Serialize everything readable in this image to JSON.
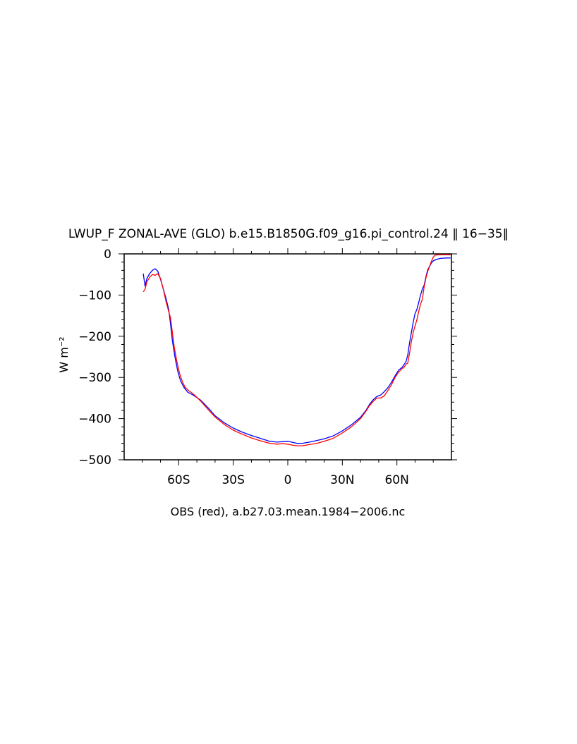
{
  "chart_data": {
    "type": "line",
    "title": "LWUP_F ZONAL-AVE (GLO) b.e15.B1850G.f09_g16.pi_control.24 ‖ 16−35‖",
    "xlabel": "OBS (red), a.b27.03.mean.1984−2006.nc",
    "ylabel": "W m⁻²",
    "xlim": [
      -90,
      90
    ],
    "ylim": [
      -500,
      0
    ],
    "x_ticks": [
      {
        "value": -60,
        "label": "60S"
      },
      {
        "value": -30,
        "label": "30S"
      },
      {
        "value": 0,
        "label": "0"
      },
      {
        "value": 30,
        "label": "30N"
      },
      {
        "value": 60,
        "label": "60N"
      }
    ],
    "y_ticks": [
      {
        "value": 0,
        "label": "0"
      },
      {
        "value": -100,
        "label": "−100"
      },
      {
        "value": -200,
        "label": "−200"
      },
      {
        "value": -300,
        "label": "−300"
      },
      {
        "value": -400,
        "label": "−400"
      },
      {
        "value": -500,
        "label": "−500"
      }
    ],
    "grid": false,
    "legend": "none",
    "series": [
      {
        "color": "#0000ff",
        "points": [
          [
            -79.5,
            -48
          ],
          [
            -78.5,
            -78
          ],
          [
            -77.5,
            -60
          ],
          [
            -76,
            -48
          ],
          [
            -74.5,
            -40
          ],
          [
            -73,
            -36
          ],
          [
            -71.5,
            -42
          ],
          [
            -70,
            -62
          ],
          [
            -68.5,
            -85
          ],
          [
            -67,
            -108
          ],
          [
            -65.5,
            -135
          ],
          [
            -64.5,
            -170
          ],
          [
            -63.5,
            -210
          ],
          [
            -62,
            -252
          ],
          [
            -60.5,
            -285
          ],
          [
            -59,
            -308
          ],
          [
            -57,
            -325
          ],
          [
            -55,
            -336
          ],
          [
            -52,
            -343
          ],
          [
            -48,
            -355
          ],
          [
            -44,
            -373
          ],
          [
            -40,
            -393
          ],
          [
            -35,
            -410
          ],
          [
            -30,
            -423
          ],
          [
            -25,
            -433
          ],
          [
            -20,
            -441
          ],
          [
            -15,
            -448
          ],
          [
            -10,
            -455
          ],
          [
            -6,
            -457
          ],
          [
            -3,
            -456
          ],
          [
            0,
            -455
          ],
          [
            2,
            -457
          ],
          [
            5,
            -460
          ],
          [
            8,
            -460
          ],
          [
            12,
            -457
          ],
          [
            16,
            -453
          ],
          [
            20,
            -449
          ],
          [
            25,
            -442
          ],
          [
            30,
            -430
          ],
          [
            35,
            -415
          ],
          [
            40,
            -397
          ],
          [
            43,
            -380
          ],
          [
            45,
            -365
          ],
          [
            47,
            -354
          ],
          [
            49,
            -346
          ],
          [
            51,
            -343
          ],
          [
            53,
            -335
          ],
          [
            55,
            -325
          ],
          [
            57,
            -312
          ],
          [
            59,
            -296
          ],
          [
            61,
            -282
          ],
          [
            63,
            -275
          ],
          [
            64,
            -268
          ],
          [
            65,
            -262
          ],
          [
            66,
            -245
          ],
          [
            67,
            -215
          ],
          [
            68,
            -190
          ],
          [
            69,
            -165
          ],
          [
            70,
            -145
          ],
          [
            71,
            -135
          ],
          [
            72,
            -118
          ],
          [
            73,
            -100
          ],
          [
            74,
            -85
          ],
          [
            75,
            -76
          ],
          [
            76,
            -55
          ],
          [
            77,
            -38
          ],
          [
            78,
            -30
          ],
          [
            79,
            -22
          ],
          [
            80,
            -17
          ],
          [
            82,
            -13
          ],
          [
            84,
            -11
          ],
          [
            87,
            -10
          ],
          [
            89.5,
            -10
          ]
        ]
      },
      {
        "color": "#ff0000",
        "points": [
          [
            -79.5,
            -92
          ],
          [
            -78.5,
            -86
          ],
          [
            -77.5,
            -68
          ],
          [
            -76,
            -57
          ],
          [
            -74.5,
            -50
          ],
          [
            -73,
            -52
          ],
          [
            -71.5,
            -48
          ],
          [
            -70,
            -60
          ],
          [
            -68.5,
            -85
          ],
          [
            -67,
            -115
          ],
          [
            -65.5,
            -140
          ],
          [
            -64.5,
            -155
          ],
          [
            -63.5,
            -190
          ],
          [
            -62.5,
            -225
          ],
          [
            -61,
            -262
          ],
          [
            -59.5,
            -290
          ],
          [
            -58,
            -310
          ],
          [
            -56.5,
            -324
          ],
          [
            -54.5,
            -332
          ],
          [
            -52,
            -340
          ],
          [
            -48,
            -357
          ],
          [
            -44,
            -377
          ],
          [
            -40,
            -396
          ],
          [
            -35,
            -414
          ],
          [
            -30,
            -428
          ],
          [
            -25,
            -438
          ],
          [
            -20,
            -447
          ],
          [
            -15,
            -454
          ],
          [
            -10,
            -460
          ],
          [
            -6,
            -462
          ],
          [
            -3,
            -461
          ],
          [
            0,
            -462
          ],
          [
            2,
            -464
          ],
          [
            5,
            -466
          ],
          [
            8,
            -466
          ],
          [
            12,
            -463
          ],
          [
            16,
            -460
          ],
          [
            20,
            -455
          ],
          [
            25,
            -448
          ],
          [
            30,
            -435
          ],
          [
            35,
            -420
          ],
          [
            40,
            -400
          ],
          [
            43,
            -382
          ],
          [
            45,
            -368
          ],
          [
            47,
            -358
          ],
          [
            49,
            -350
          ],
          [
            51,
            -350
          ],
          [
            53,
            -345
          ],
          [
            55,
            -332
          ],
          [
            57,
            -318
          ],
          [
            59,
            -300
          ],
          [
            61,
            -287
          ],
          [
            63,
            -278
          ],
          [
            64,
            -275
          ],
          [
            65,
            -268
          ],
          [
            66,
            -265
          ],
          [
            67,
            -240
          ],
          [
            68,
            -212
          ],
          [
            69,
            -190
          ],
          [
            70,
            -175
          ],
          [
            71,
            -160
          ],
          [
            72,
            -140
          ],
          [
            73,
            -122
          ],
          [
            74,
            -110
          ],
          [
            75,
            -80
          ],
          [
            76,
            -58
          ],
          [
            77,
            -42
          ],
          [
            78,
            -30
          ],
          [
            79,
            -18
          ],
          [
            80,
            -8
          ],
          [
            81,
            -3
          ],
          [
            83,
            -2
          ],
          [
            86,
            -2
          ],
          [
            89.5,
            -2
          ]
        ]
      }
    ]
  }
}
